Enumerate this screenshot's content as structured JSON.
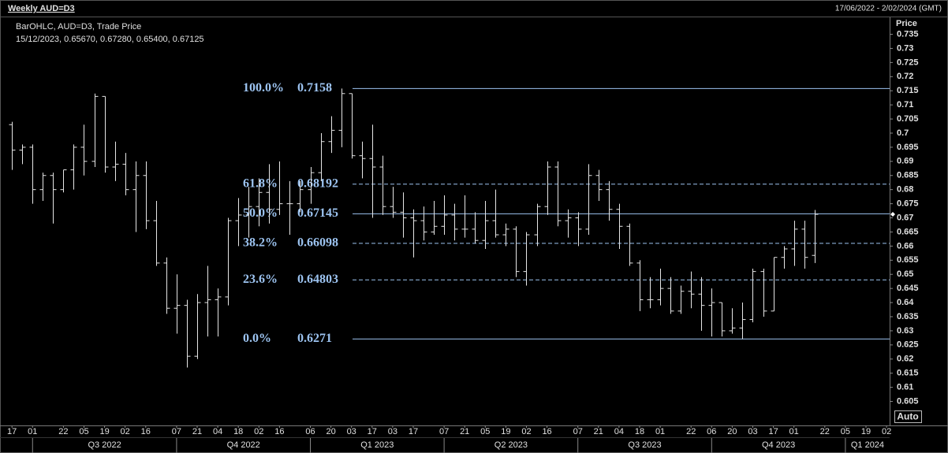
{
  "header": {
    "title": "Weekly AUD=D3",
    "range": "17/06/2022 - 2/02/2024 (GMT)"
  },
  "legend": {
    "line1": "BarOHLC, AUD=D3, Trade Price",
    "line2": "15/12/2023, 0.65670, 0.67280, 0.65400, 0.67125"
  },
  "axis": {
    "y_title": "Price",
    "button": "Auto"
  },
  "chart_data": {
    "type": "ohlc",
    "series": [
      {
        "name": "AUD=D3",
        "color": "#e6e6e6",
        "open": [
          0.703,
          0.694,
          0.695,
          0.68,
          0.685,
          0.68,
          0.687,
          0.695,
          0.69,
          0.713,
          0.688,
          0.689,
          0.68,
          0.685,
          0.669,
          0.654,
          0.638,
          0.639,
          0.621,
          0.64,
          0.641,
          0.642,
          0.669,
          0.671,
          0.674,
          0.679,
          0.673,
          0.675,
          0.675,
          0.68,
          0.686,
          0.697,
          0.701,
          0.714,
          0.692,
          0.691,
          0.688,
          0.674,
          0.672,
          0.67,
          0.669,
          0.665,
          0.667,
          0.671,
          0.666,
          0.666,
          0.662,
          0.669,
          0.664,
          0.666,
          0.651,
          0.664,
          0.674,
          0.688,
          0.669,
          0.67,
          0.666,
          0.685,
          0.68,
          0.673,
          0.667,
          0.654,
          0.641,
          0.641,
          0.645,
          0.637,
          0.644,
          0.643,
          0.639,
          0.64,
          0.63,
          0.631,
          0.634,
          0.651,
          0.637,
          0.656,
          0.659,
          0.666,
          0.6567
        ],
        "high": [
          0.704,
          0.696,
          0.696,
          0.686,
          0.686,
          0.687,
          0.696,
          0.703,
          0.714,
          0.713,
          0.697,
          0.693,
          0.69,
          0.69,
          0.676,
          0.656,
          0.65,
          0.641,
          0.643,
          0.653,
          0.645,
          0.67,
          0.677,
          0.681,
          0.684,
          0.689,
          0.69,
          0.683,
          0.683,
          0.688,
          0.7,
          0.706,
          0.7158,
          0.714,
          0.697,
          0.703,
          0.692,
          0.681,
          0.679,
          0.673,
          0.674,
          0.676,
          0.678,
          0.675,
          0.678,
          0.672,
          0.676,
          0.68,
          0.668,
          0.667,
          0.665,
          0.675,
          0.69,
          0.69,
          0.673,
          0.672,
          0.689,
          0.687,
          0.683,
          0.675,
          0.668,
          0.655,
          0.649,
          0.652,
          0.649,
          0.646,
          0.651,
          0.649,
          0.645,
          0.64,
          0.638,
          0.64,
          0.652,
          0.652,
          0.656,
          0.66,
          0.669,
          0.669,
          0.6728
        ],
        "low": [
          0.687,
          0.689,
          0.675,
          0.676,
          0.668,
          0.679,
          0.68,
          0.685,
          0.688,
          0.686,
          0.683,
          0.678,
          0.665,
          0.666,
          0.653,
          0.636,
          0.629,
          0.617,
          0.62,
          0.628,
          0.628,
          0.639,
          0.66,
          0.663,
          0.667,
          0.668,
          0.671,
          0.664,
          0.672,
          0.675,
          0.683,
          0.693,
          0.695,
          0.691,
          0.684,
          0.67,
          0.671,
          0.67,
          0.663,
          0.656,
          0.662,
          0.664,
          0.664,
          0.662,
          0.663,
          0.661,
          0.659,
          0.663,
          0.66,
          0.649,
          0.646,
          0.66,
          0.671,
          0.667,
          0.663,
          0.66,
          0.664,
          0.676,
          0.669,
          0.659,
          0.653,
          0.637,
          0.638,
          0.639,
          0.636,
          0.636,
          0.638,
          0.63,
          0.628,
          0.628,
          0.629,
          0.6271,
          0.633,
          0.635,
          0.637,
          0.652,
          0.653,
          0.652,
          0.654
        ],
        "close": [
          0.694,
          0.695,
          0.68,
          0.685,
          0.68,
          0.687,
          0.695,
          0.69,
          0.713,
          0.688,
          0.689,
          0.68,
          0.685,
          0.669,
          0.654,
          0.638,
          0.639,
          0.621,
          0.64,
          0.641,
          0.642,
          0.669,
          0.671,
          0.674,
          0.679,
          0.673,
          0.675,
          0.675,
          0.68,
          0.686,
          0.697,
          0.701,
          0.714,
          0.692,
          0.691,
          0.688,
          0.674,
          0.672,
          0.67,
          0.669,
          0.665,
          0.667,
          0.671,
          0.666,
          0.666,
          0.662,
          0.669,
          0.664,
          0.666,
          0.651,
          0.664,
          0.674,
          0.688,
          0.669,
          0.67,
          0.666,
          0.685,
          0.68,
          0.673,
          0.667,
          0.654,
          0.641,
          0.641,
          0.645,
          0.637,
          0.644,
          0.643,
          0.639,
          0.64,
          0.63,
          0.631,
          0.634,
          0.651,
          0.637,
          0.656,
          0.659,
          0.666,
          0.656,
          0.67125
        ]
      }
    ],
    "xlim": [
      -0.55,
      85.3
    ],
    "xticks": [
      {
        "value": 0,
        "label": "17"
      },
      {
        "value": 2,
        "label": "01"
      },
      {
        "value": 5,
        "label": "22"
      },
      {
        "value": 7,
        "label": "05"
      },
      {
        "value": 9,
        "label": "19"
      },
      {
        "value": 11,
        "label": "02"
      },
      {
        "value": 13,
        "label": "16"
      },
      {
        "value": 16,
        "label": "07"
      },
      {
        "value": 18,
        "label": "21"
      },
      {
        "value": 20,
        "label": "04"
      },
      {
        "value": 22,
        "label": "18"
      },
      {
        "value": 24,
        "label": "02"
      },
      {
        "value": 26,
        "label": "16"
      },
      {
        "value": 29,
        "label": "06"
      },
      {
        "value": 31,
        "label": "20"
      },
      {
        "value": 33,
        "label": "03"
      },
      {
        "value": 35,
        "label": "17"
      },
      {
        "value": 37,
        "label": "03"
      },
      {
        "value": 39,
        "label": "17"
      },
      {
        "value": 42,
        "label": "07"
      },
      {
        "value": 44,
        "label": "21"
      },
      {
        "value": 46,
        "label": "05"
      },
      {
        "value": 48,
        "label": "19"
      },
      {
        "value": 50,
        "label": "02"
      },
      {
        "value": 52,
        "label": "16"
      },
      {
        "value": 55,
        "label": "07"
      },
      {
        "value": 57,
        "label": "21"
      },
      {
        "value": 59,
        "label": "04"
      },
      {
        "value": 61,
        "label": "18"
      },
      {
        "value": 63,
        "label": "01"
      },
      {
        "value": 66,
        "label": "22"
      },
      {
        "value": 68,
        "label": "06"
      },
      {
        "value": 70,
        "label": "20"
      },
      {
        "value": 72,
        "label": "03"
      },
      {
        "value": 74,
        "label": "17"
      },
      {
        "value": 76,
        "label": "01"
      },
      {
        "value": 79,
        "label": "22"
      },
      {
        "value": 81,
        "label": "05"
      },
      {
        "value": 83,
        "label": "19"
      },
      {
        "value": 85,
        "label": "02"
      }
    ],
    "quarters": [
      {
        "value": 2,
        "label": "Q3 2022"
      },
      {
        "value": 16,
        "label": "Q4 2022"
      },
      {
        "value": 29,
        "label": "Q1 2023"
      },
      {
        "value": 42,
        "label": "Q2 2023"
      },
      {
        "value": 55,
        "label": "Q3 2023"
      },
      {
        "value": 68,
        "label": "Q4 2023"
      },
      {
        "value": 81,
        "label": "Q1 2024"
      }
    ],
    "ylim": [
      0.5965,
      0.741
    ],
    "yticks": [
      0.605,
      0.61,
      0.615,
      0.62,
      0.625,
      0.63,
      0.635,
      0.64,
      0.645,
      0.65,
      0.655,
      0.66,
      0.665,
      0.67,
      0.675,
      0.68,
      0.685,
      0.69,
      0.695,
      0.7,
      0.705,
      0.71,
      0.715,
      0.72,
      0.725,
      0.73,
      0.735
    ],
    "fib_color": "#9cc3f0",
    "fib_levels": [
      {
        "label": "100.0%",
        "value": 0.7158,
        "dashed": false
      },
      {
        "label": "61.8%",
        "value": 0.68192,
        "dashed": true
      },
      {
        "label": "50.0%",
        "value": 0.67145,
        "dashed": false
      },
      {
        "label": "38.2%",
        "value": 0.66098,
        "dashed": true
      },
      {
        "label": "23.6%",
        "value": 0.64803,
        "dashed": true
      },
      {
        "label": "0.0%",
        "value": 0.6271,
        "dashed": false
      }
    ]
  }
}
